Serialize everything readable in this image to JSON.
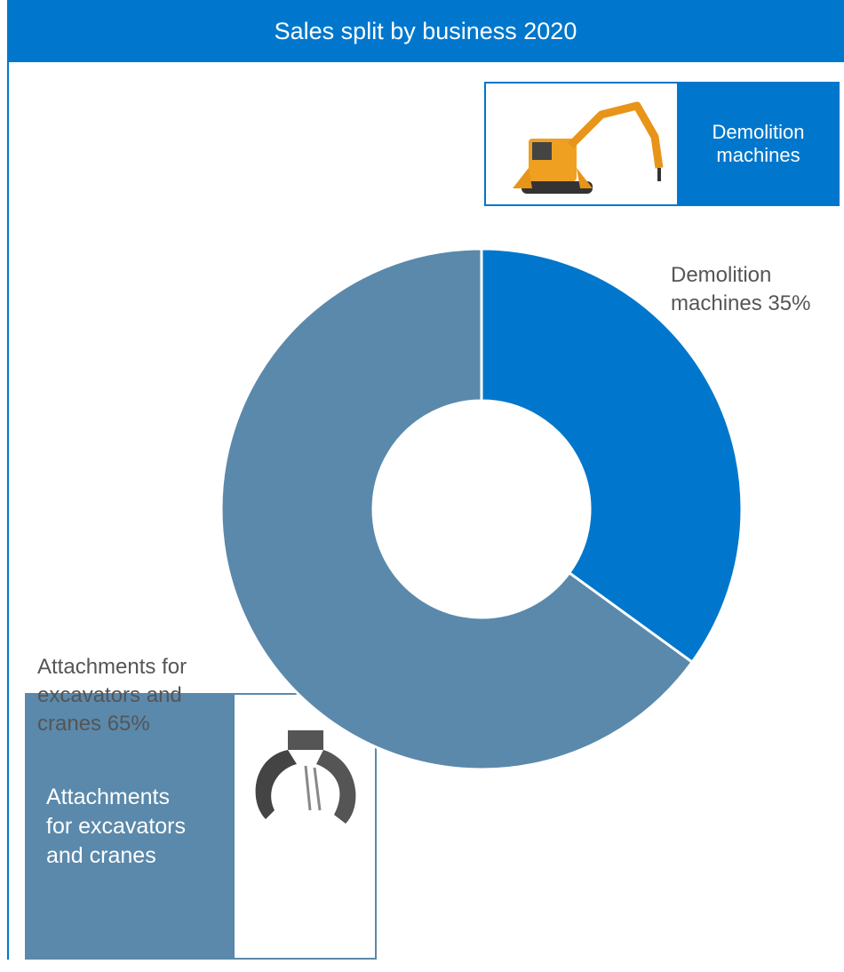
{
  "chart_data": {
    "type": "pie",
    "title": "Sales split by business 2020",
    "categories": [
      "Demolition machines",
      "Attachments for excavators and cranes"
    ],
    "values": [
      35,
      65
    ],
    "value_labels": [
      "Demolition machines 35%",
      "Attachments for excavators and cranes 65%"
    ],
    "colors": [
      "#0077cc",
      "#5a89ab"
    ],
    "donut": true
  }
}
